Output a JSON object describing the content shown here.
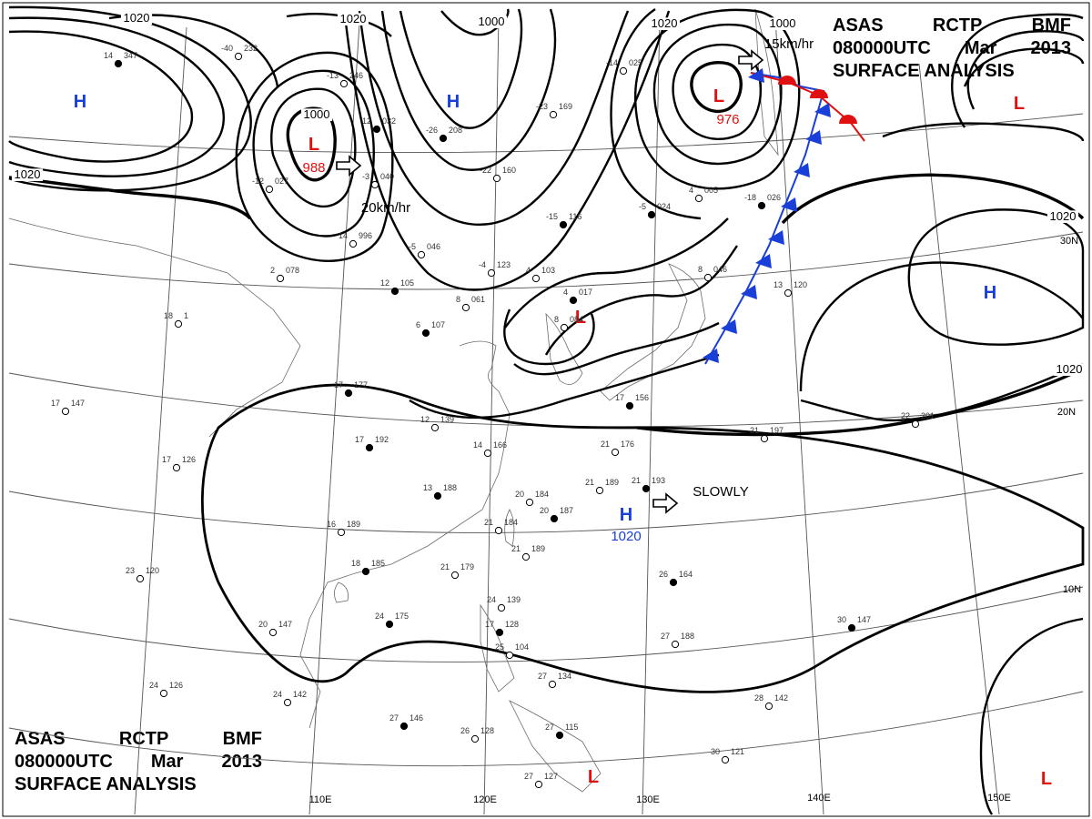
{
  "header": {
    "agency": "ASAS",
    "station": "RCTP",
    "bureau": "BMF",
    "valid_time": "080000UTC",
    "month": "Mar",
    "year": "2013",
    "title": "SURFACE ANALYSIS"
  },
  "longitude_labels": [
    "110E",
    "120E",
    "130E",
    "140E",
    "150E"
  ],
  "latitude_labels": [
    "30N",
    "20N",
    "10N"
  ],
  "isobar_labels": [
    "1020",
    "1020",
    "1000",
    "1020",
    "1000",
    "1020",
    "1000",
    "1020",
    "1020"
  ],
  "pressure_centers": [
    {
      "type": "H",
      "color": "#1a3fd8"
    },
    {
      "type": "L",
      "color": "#e01010",
      "value": "988"
    },
    {
      "type": "H",
      "color": "#1a3fd8"
    },
    {
      "type": "L",
      "color": "#e01010",
      "value": "976"
    },
    {
      "type": "L",
      "color": "#e01010"
    },
    {
      "type": "L",
      "color": "#e01010"
    },
    {
      "type": "H",
      "color": "#1a3fd8"
    },
    {
      "type": "H",
      "color": "#1a3fd8",
      "value": "1020"
    },
    {
      "type": "L",
      "color": "#e01010"
    },
    {
      "type": "L",
      "color": "#e01010"
    }
  ],
  "motions": [
    {
      "label": "20km/hr"
    },
    {
      "label": "15km/hr"
    },
    {
      "label": "SLOWLY"
    }
  ],
  "stations": [
    {
      "t": "14",
      "p": "347"
    },
    {
      "t": "-40",
      "p": "232"
    },
    {
      "t": "-13",
      "p": "246"
    },
    {
      "t": "12",
      "p": "032"
    },
    {
      "t": "-3",
      "p": "040"
    },
    {
      "t": "-12",
      "p": "027"
    },
    {
      "t": "-26",
      "p": "208"
    },
    {
      "t": "-23",
      "p": "169"
    },
    {
      "t": "-22",
      "p": "160"
    },
    {
      "t": "-15",
      "p": "116"
    },
    {
      "t": "14",
      "p": "996"
    },
    {
      "t": "-5",
      "p": "046"
    },
    {
      "t": "12",
      "p": "105"
    },
    {
      "t": "2",
      "p": "078"
    },
    {
      "t": "8",
      "p": "061"
    },
    {
      "t": "6",
      "p": "107"
    },
    {
      "t": "-4",
      "p": "123"
    },
    {
      "t": "4",
      "p": "103"
    },
    {
      "t": "4",
      "p": "017"
    },
    {
      "t": "8",
      "p": "084"
    },
    {
      "t": "-14",
      "p": "025"
    },
    {
      "t": "-5",
      "p": "024"
    },
    {
      "t": "4",
      "p": "005"
    },
    {
      "t": "8",
      "p": "046"
    },
    {
      "t": "-18",
      "p": "026"
    },
    {
      "t": "13",
      "p": "120"
    },
    {
      "t": "18",
      "p": "1"
    },
    {
      "t": "17",
      "p": "177"
    },
    {
      "t": "12",
      "p": "139"
    },
    {
      "t": "14",
      "p": "166"
    },
    {
      "t": "17",
      "p": "192"
    },
    {
      "t": "17",
      "p": "126"
    },
    {
      "t": "17",
      "p": "147"
    },
    {
      "t": "13",
      "p": "188"
    },
    {
      "t": "20",
      "p": "184"
    },
    {
      "t": "21",
      "p": "189"
    },
    {
      "t": "21",
      "p": "193"
    },
    {
      "t": "21",
      "p": "176"
    },
    {
      "t": "21",
      "p": "184"
    },
    {
      "t": "20",
      "p": "187"
    },
    {
      "t": "21",
      "p": "189"
    },
    {
      "t": "16",
      "p": "189"
    },
    {
      "t": "18",
      "p": "185"
    },
    {
      "t": "21",
      "p": "179"
    },
    {
      "t": "23",
      "p": "120"
    },
    {
      "t": "24",
      "p": "175"
    },
    {
      "t": "20",
      "p": "147"
    },
    {
      "t": "24",
      "p": "139"
    },
    {
      "t": "17",
      "p": "128"
    },
    {
      "t": "25",
      "p": "104"
    },
    {
      "t": "27",
      "p": "188"
    },
    {
      "t": "26",
      "p": "164"
    },
    {
      "t": "24",
      "p": "126"
    },
    {
      "t": "24",
      "p": "142"
    },
    {
      "t": "27",
      "p": "146"
    },
    {
      "t": "26",
      "p": "128"
    },
    {
      "t": "27",
      "p": "127"
    },
    {
      "t": "27",
      "p": "115"
    },
    {
      "t": "30",
      "p": "121"
    },
    {
      "t": "28",
      "p": "142"
    },
    {
      "t": "30",
      "p": "147"
    },
    {
      "t": "22",
      "p": "201"
    },
    {
      "t": "21",
      "p": "197"
    },
    {
      "t": "17",
      "p": "156"
    },
    {
      "t": "27",
      "p": "134"
    }
  ]
}
